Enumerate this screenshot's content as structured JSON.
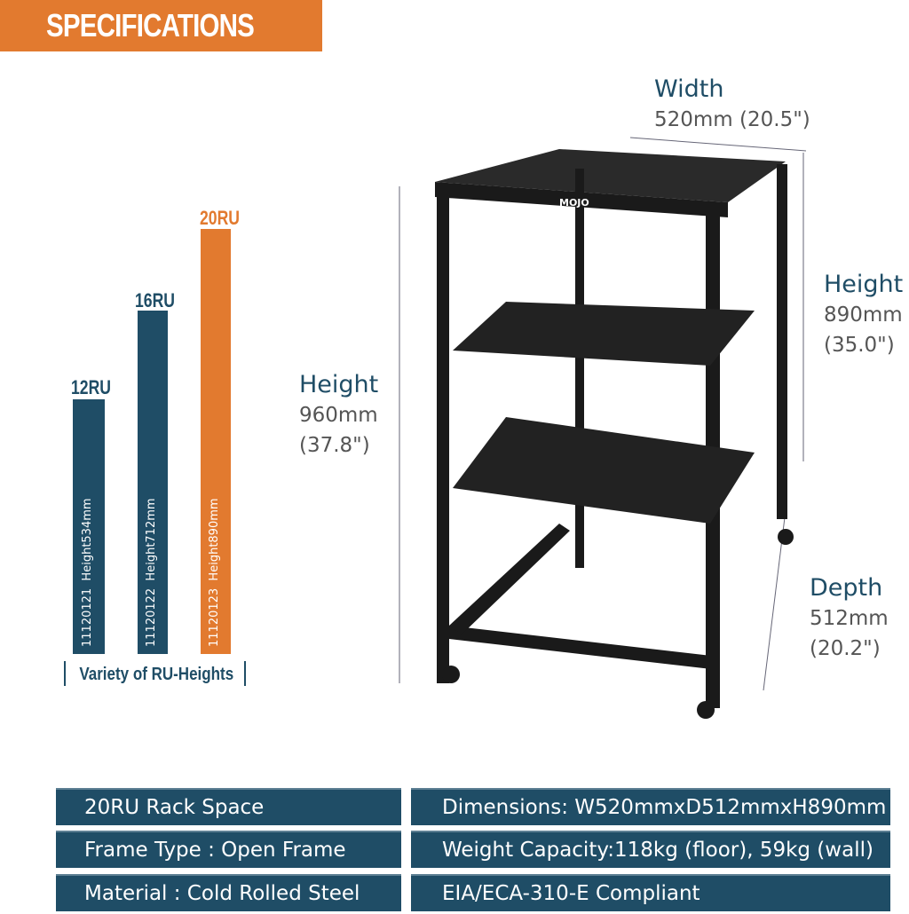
{
  "header": {
    "title": "SPECIFICATIONS"
  },
  "colors": {
    "navy": "#1f4d66",
    "orange": "#e27a2f"
  },
  "variants": [
    {
      "ru": "12RU",
      "code": "11120121",
      "height": "Height534mm",
      "color": "navy"
    },
    {
      "ru": "16RU",
      "code": "11120122",
      "height": "Height712mm",
      "color": "navy"
    },
    {
      "ru": "20RU",
      "code": "11120123",
      "height": "Height890mm",
      "color": "orange"
    }
  ],
  "variety_label": "Variety of RU-Heights",
  "dimensions": {
    "width": {
      "label": "Width",
      "value": "520mm (20.5\")"
    },
    "height_frame": {
      "label": "Height",
      "value": "890mm",
      "imperial": "(35.0\")"
    },
    "height_total": {
      "label": "Height",
      "value": "960mm",
      "imperial": "(37.8\")"
    },
    "depth": {
      "label": "Depth",
      "value": "512mm",
      "imperial": "(20.2\")"
    }
  },
  "product": {
    "logo": "THE MOJO"
  },
  "specs": [
    [
      "20RU Rack Space",
      "Dimensions: W520mmxD512mmxH890mm"
    ],
    [
      "Frame Type : Open Frame",
      "Weight Capacity:118kg (floor), 59kg (wall)"
    ],
    [
      "Material : Cold Rolled Steel",
      "EIA/ECA-310-E Compliant"
    ]
  ]
}
